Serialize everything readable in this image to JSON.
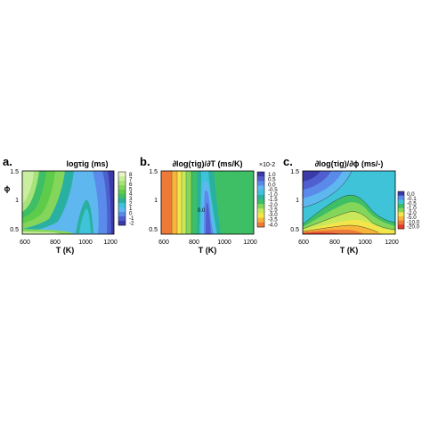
{
  "chart_data": [
    {
      "panel": "a.",
      "title": "logτig (ms)",
      "type": "heatmap",
      "xlabel": "T (K)",
      "ylabel": "ϕ",
      "xlim": [
        600,
        1200
      ],
      "ylim": [
        0.1,
        1.5
      ],
      "xticks": [
        "600",
        "800",
        "1000",
        "1200"
      ],
      "yticks": [
        "0.5",
        "1",
        "1.5"
      ],
      "colorbar": {
        "ticks": [
          "8",
          "7",
          "6",
          "5",
          "4",
          "3",
          "2",
          "1",
          "0",
          "-1",
          "-2"
        ],
        "colors": [
          "#e8f5c8",
          "#c9ee9f",
          "#a8e27b",
          "#84d65b",
          "#5fcb4a",
          "#3ebf66",
          "#2ab0a0",
          "#3fc3d8",
          "#5fb7f0",
          "#5a8bea",
          "#4f5fcf",
          "#3a3aa8"
        ]
      },
      "notes": "long ignition delay (green) at low T, minimum (blue) near 1000-1200 K, NTC bump near 900-1000 K"
    },
    {
      "panel": "b.",
      "title": "∂log(τig)/∂T (ms/K)",
      "type": "heatmap",
      "xlabel": "T (K)",
      "xlim": [
        600,
        1200
      ],
      "ylim": [
        0.1,
        1.5
      ],
      "xticks": [
        "600",
        "800",
        "1000",
        "1200"
      ],
      "yticks": [
        "0.5",
        "1",
        "1.5"
      ],
      "multiplier": "×10-2",
      "annotation": "0.0",
      "colorbar": {
        "ticks": [
          "1.0",
          "0.5",
          "0.0",
          "-0.5",
          "-1.0",
          "-1.5",
          "-2.0",
          "-2.5",
          "-3.0",
          "-3.5",
          "-4.0"
        ],
        "colors": [
          "#3a3aa8",
          "#4f5fcf",
          "#5a8bea",
          "#5fb7f0",
          "#3fc3d8",
          "#2ab0a0",
          "#3ebf66",
          "#84d65b",
          "#c8e85a",
          "#f2e64a",
          "#f6b43a",
          "#ee7a3a"
        ]
      },
      "notes": "strongly negative (red/orange) at low T, positive band (blue) near 950 K, near zero (green) above 1050 K"
    },
    {
      "panel": "c.",
      "title": "∂log(τig)/∂ϕ (ms/-)",
      "type": "heatmap",
      "xlabel": "T (K)",
      "xlim": [
        600,
        1200
      ],
      "ylim": [
        0.1,
        1.5
      ],
      "xticks": [
        "600",
        "800",
        "1000",
        "1200"
      ],
      "yticks": [
        "0.5",
        "1",
        "1.5"
      ],
      "colorbar": {
        "ticks": [
          "0.0",
          "-0.1",
          "-0.5",
          "-1.0",
          "-2.0",
          "-5.0",
          "-10.0",
          "-20.0"
        ],
        "colors": [
          "#3a3aa8",
          "#5a8bea",
          "#3fc3d8",
          "#3ebf66",
          "#84d65b",
          "#f2e64a",
          "#f6b43a",
          "#ee7a3a",
          "#e23b2a"
        ]
      },
      "notes": "near zero (blue) at high ϕ, strongly negative (red) at low ϕ and low-mid T"
    }
  ]
}
